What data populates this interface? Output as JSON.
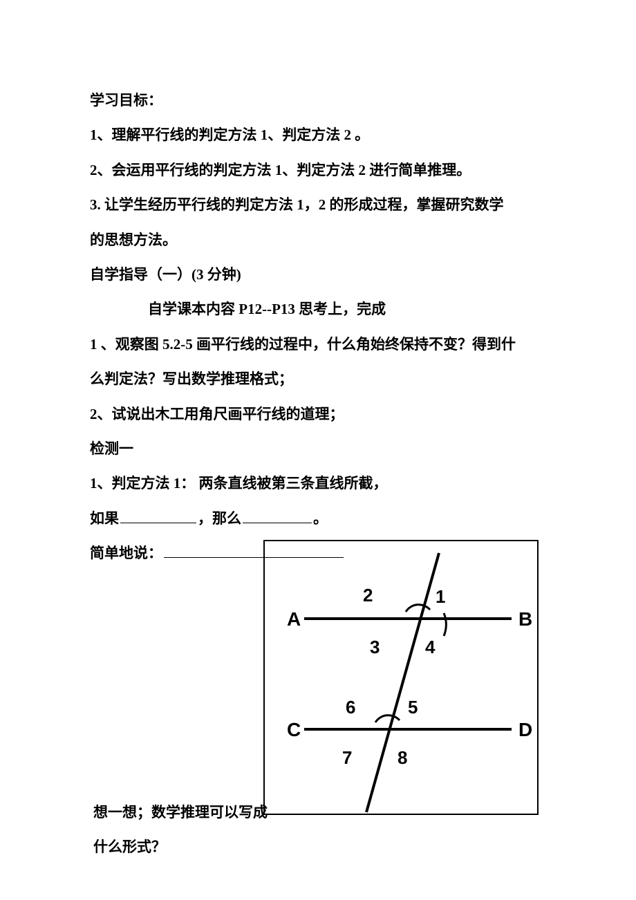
{
  "heading": "学习目标：",
  "goal1": "1、理解平行线的判定方法 1、判定方法 2  。",
  "goal2": "2、会运用平行线的判定方法 1、判定方法 2 进行简单推理。",
  "goal3a": "3.      让学生经历平行线的判定方法 1，2 的形成过程，掌握研究数学",
  "goal3b": "的思想方法。",
  "guide_title": "自学指导（一）(3 分钟)",
  "guide_sub": "自学课本内容 P12--P13 思考上，完成",
  "q1a": "1  、观察图 5.2-5 画平行线的过程中，什么角始终保持不变？得到什",
  "q1b": "么判定法？写出数学推理格式；",
  "q2": "2、试说出木工用角尺画平行线的道理；",
  "test_title": "检测一",
  "t1": "1、判定方法 1：    两条直线被第三条直线所截，",
  "t2_prefix": "如果",
  "t2_mid": "，那么",
  "t2_suffix": "。",
  "t3_prefix": "简单地说：",
  "bottom1": "想一想；数学推理可以写成",
  "bottom2": "什么形式？",
  "diagram": {
    "background": "#ffffff",
    "stroke": "#000000",
    "stroke_heavy": 4,
    "stroke_light": 3,
    "labels": {
      "A": "A",
      "B": "B",
      "C": "C",
      "D": "D",
      "n1": "1",
      "n2": "2",
      "n3": "3",
      "n4": "4",
      "n5": "5",
      "n6": "6",
      "n7": "7",
      "n8": "8"
    },
    "label_fontsize": 28,
    "num_fontsize": 26
  },
  "underline_widths": {
    "w1": 110,
    "w2": 100,
    "w3": 260
  }
}
